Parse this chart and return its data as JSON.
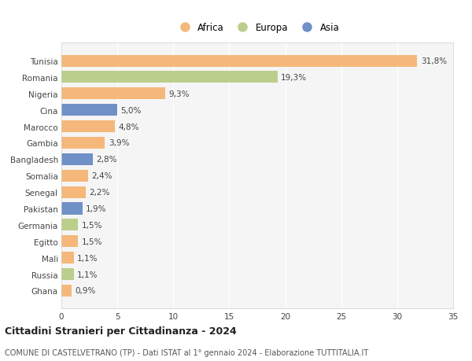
{
  "countries": [
    "Tunisia",
    "Romania",
    "Nigeria",
    "Cina",
    "Marocco",
    "Gambia",
    "Bangladesh",
    "Somalia",
    "Senegal",
    "Pakistan",
    "Germania",
    "Egitto",
    "Mali",
    "Russia",
    "Ghana"
  ],
  "values": [
    31.8,
    19.3,
    9.3,
    5.0,
    4.8,
    3.9,
    2.8,
    2.4,
    2.2,
    1.9,
    1.5,
    1.5,
    1.1,
    1.1,
    0.9
  ],
  "labels": [
    "31,8%",
    "19,3%",
    "9,3%",
    "5,0%",
    "4,8%",
    "3,9%",
    "2,8%",
    "2,4%",
    "2,2%",
    "1,9%",
    "1,5%",
    "1,5%",
    "1,1%",
    "1,1%",
    "0,9%"
  ],
  "continents": [
    "Africa",
    "Europa",
    "Africa",
    "Asia",
    "Africa",
    "Africa",
    "Asia",
    "Africa",
    "Africa",
    "Asia",
    "Europa",
    "Africa",
    "Africa",
    "Europa",
    "Africa"
  ],
  "colors": {
    "Africa": "#F5B87A",
    "Europa": "#BACF8C",
    "Asia": "#7090C8"
  },
  "xlim": [
    0,
    35
  ],
  "xticks": [
    0,
    5,
    10,
    15,
    20,
    25,
    30,
    35
  ],
  "title": "Cittadini Stranieri per Cittadinanza - 2024",
  "subtitle": "COMUNE DI CASTELVETRANO (TP) - Dati ISTAT al 1° gennaio 2024 - Elaborazione TUTTITALIA.IT",
  "background_color": "#ffffff",
  "plot_bg_color": "#f5f5f5",
  "grid_color": "#ffffff",
  "bar_height": 0.72,
  "label_fontsize": 7.5,
  "ytick_fontsize": 7.5,
  "xtick_fontsize": 7.5,
  "legend_fontsize": 8.5,
  "title_fontsize": 9,
  "subtitle_fontsize": 7
}
